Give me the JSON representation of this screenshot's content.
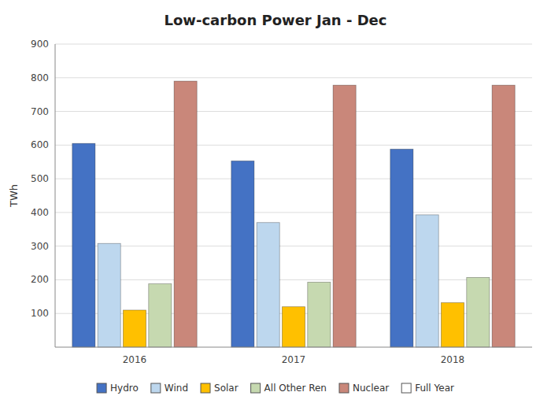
{
  "chart_data": {
    "type": "bar",
    "title": "Low-carbon Power Jan - Dec",
    "ylabel": "TWh",
    "categories": [
      "2016",
      "2017",
      "2018"
    ],
    "series": [
      {
        "name": "Hydro",
        "color": "#4472C4",
        "values": [
          605,
          553,
          588
        ]
      },
      {
        "name": "Wind",
        "color": "#BDD7EE",
        "values": [
          308,
          370,
          393
        ]
      },
      {
        "name": "Solar",
        "color": "#FFC000",
        "values": [
          110,
          120,
          132
        ]
      },
      {
        "name": "All Other Ren",
        "color": "#C6D9B0",
        "values": [
          188,
          193,
          207
        ]
      },
      {
        "name": "Nuclear",
        "color": "#C9877A",
        "values": [
          790,
          778,
          778
        ]
      },
      {
        "name": "Full Year",
        "color": "#FFFFFF",
        "values": [
          null,
          null,
          null
        ]
      }
    ],
    "ylim": [
      0,
      900
    ],
    "yticks": [
      100,
      200,
      300,
      400,
      500,
      600,
      700,
      800,
      900
    ],
    "grid": true,
    "legend": "bottom"
  }
}
